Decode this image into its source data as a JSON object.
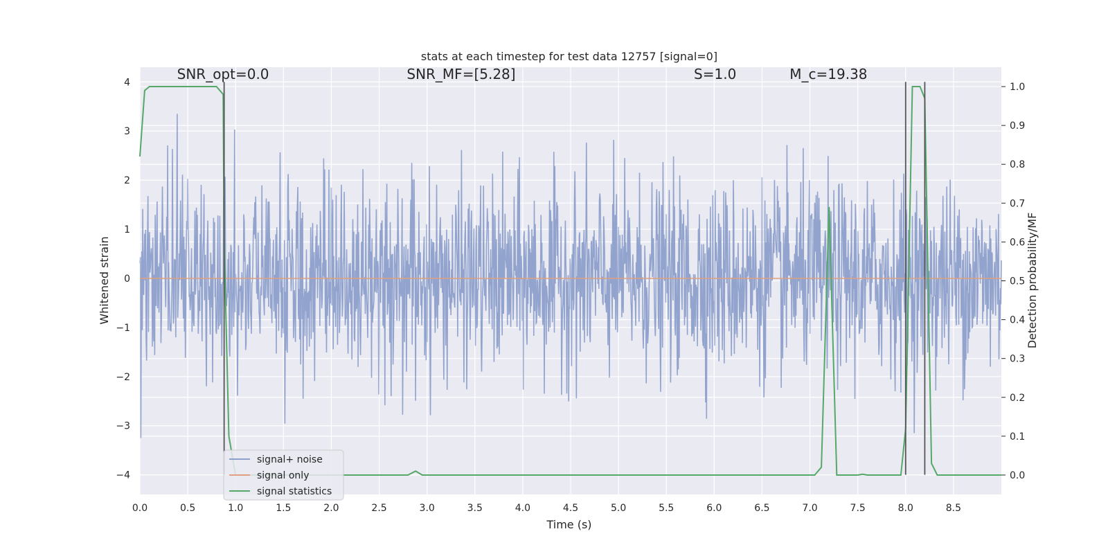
{
  "chart_data": {
    "type": "line",
    "title": "stats at each timestep for test data 12757 [signal=0]",
    "xlabel": "Time (s)",
    "ylabel": "Whitened strain",
    "y2label": "Detection probability/MF",
    "xlim": [
      0.0,
      9.0
    ],
    "ylim": [
      -4.4,
      4.3
    ],
    "y2lim": [
      -0.05,
      1.05
    ],
    "grid": true,
    "legend_position": "lower-left",
    "x_ticks": [
      0.0,
      0.5,
      1.0,
      1.5,
      2.0,
      2.5,
      3.0,
      3.5,
      4.0,
      4.5,
      5.0,
      5.5,
      6.0,
      6.5,
      7.0,
      7.5,
      8.0,
      8.5
    ],
    "x_tick_labels": [
      "0.0",
      "0.5",
      "1.0",
      "1.5",
      "2.0",
      "2.5",
      "3.0",
      "3.5",
      "4.0",
      "4.5",
      "5.0",
      "5.5",
      "6.0",
      "6.5",
      "7.0",
      "7.5",
      "8.0",
      "8.5"
    ],
    "y_ticks": [
      4,
      3,
      2,
      1,
      0,
      -1,
      -2,
      -3,
      -4
    ],
    "y_tick_labels": [
      "4",
      "3",
      "2",
      "1",
      "0",
      "−1",
      "−2",
      "−3",
      "−4"
    ],
    "y2_ticks": [
      1.0,
      0.9,
      0.8,
      0.7,
      0.6,
      0.5,
      0.4,
      0.3,
      0.2,
      0.1,
      0.0
    ],
    "y2_tick_labels": [
      "1.0",
      "0.9",
      "0.8",
      "0.7",
      "0.6",
      "0.5",
      "0.4",
      "0.3",
      "0.2",
      "0.1",
      "0.0"
    ],
    "annotations": [
      {
        "text": "SNR_opt=0.0",
        "x": 0.2,
        "italic_prefix": false
      },
      {
        "text": "SNR_MF=[5.28]",
        "x": 2.6,
        "italic_prefix": true
      },
      {
        "text": "S=1.0",
        "x": 5.6,
        "italic_prefix": true
      },
      {
        "text": "M_c=19.38",
        "x": 6.6,
        "italic_prefix": true
      }
    ],
    "annotation_y": 4.1,
    "series": [
      {
        "name": "signal+ noise",
        "color": "#8da0cb",
        "kind": "noise",
        "dt": 0.005,
        "std": 0.95,
        "abs_max": 4.0,
        "gaps": [
          0.87,
          2.93
        ]
      },
      {
        "name": "signal only",
        "color": "#e0a080",
        "kind": "flat",
        "value": 0.0
      },
      {
        "name": "signal statistics",
        "color": "#55a868",
        "axis": "y2",
        "x": [
          0.0,
          0.05,
          0.1,
          0.5,
          0.8,
          0.87,
          0.88,
          0.93,
          1.0,
          1.02,
          2.8,
          2.88,
          2.95,
          3.0,
          7.05,
          7.12,
          7.2,
          7.28,
          7.33,
          7.5,
          7.55,
          7.6,
          7.95,
          8.0,
          8.07,
          8.15,
          8.2,
          8.27,
          8.33,
          9.0
        ],
        "values": [
          0.82,
          0.99,
          1.0,
          1.0,
          1.0,
          0.98,
          0.6,
          0.1,
          0.0,
          0.0,
          0.0,
          0.01,
          0.0,
          0.0,
          0.0,
          0.02,
          0.69,
          0.0,
          0.0,
          0.0,
          0.002,
          0.0,
          0.0,
          0.12,
          1.0,
          1.0,
          0.97,
          0.03,
          0.0,
          0.0
        ]
      }
    ],
    "vertical_markers": {
      "color": "#555555",
      "x": [
        0.88,
        8.0,
        8.2
      ],
      "y_top": 4.0,
      "y_bottom": -4.0
    }
  }
}
